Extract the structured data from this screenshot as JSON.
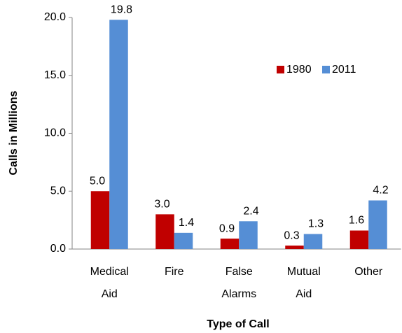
{
  "chart_data": {
    "type": "bar",
    "categories": [
      "Medical Aid",
      "Fire",
      "False Alarms",
      "Mutual Aid",
      "Other"
    ],
    "series": [
      {
        "name": "1980",
        "color": "#c00000",
        "values": [
          5.0,
          3.0,
          0.9,
          0.3,
          1.6
        ],
        "value_labels": [
          "5.0",
          "3.0",
          "0.9",
          "0.3",
          "1.6"
        ]
      },
      {
        "name": "2011",
        "color": "#558ed5",
        "values": [
          19.8,
          1.4,
          2.4,
          1.3,
          4.2
        ],
        "value_labels": [
          "19.8",
          "1.4",
          "2.4",
          "1.3",
          "4.2"
        ]
      }
    ],
    "ylabel": "Calls in Millions",
    "xlabel": "Type of Call",
    "ylim": [
      0,
      20
    ],
    "yticks": [
      {
        "value": 0,
        "label": "0.0"
      },
      {
        "value": 5,
        "label": "5.0"
      },
      {
        "value": 10,
        "label": "10.0"
      },
      {
        "value": 15,
        "label": "15.0"
      },
      {
        "value": 20,
        "label": "20.0"
      }
    ],
    "grid": false,
    "legend": "upper right"
  }
}
